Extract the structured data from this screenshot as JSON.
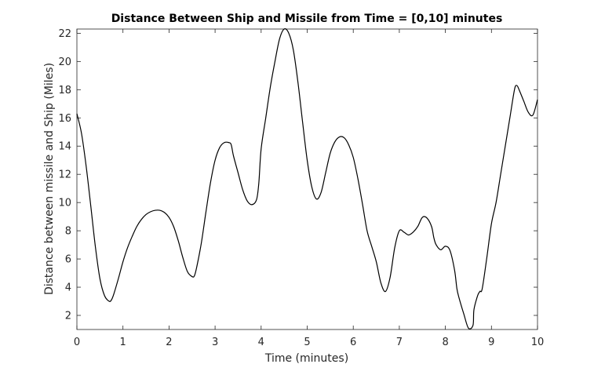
{
  "chart_data": {
    "type": "line",
    "title": "Distance Between Ship and Missile from Time = [0,10] minutes",
    "xlabel": "Time (minutes)",
    "ylabel": "Distance between missile and Ship (Miles)",
    "xlim": [
      0,
      10
    ],
    "ylim": [
      1,
      22.3
    ],
    "xticks": [
      "0",
      "1",
      "2",
      "3",
      "4",
      "5",
      "6",
      "7",
      "8",
      "9",
      "10"
    ],
    "yticks": [
      "2",
      "4",
      "6",
      "8",
      "10",
      "12",
      "14",
      "16",
      "18",
      "20",
      "22"
    ],
    "grid": false,
    "legend": "none",
    "line_color": "#000000",
    "series": [
      {
        "x": [
          0,
          0.1,
          0.2,
          0.3,
          0.4,
          0.5,
          0.6,
          0.7,
          0.75,
          0.8,
          0.9,
          1.0,
          1.1,
          1.2,
          1.3,
          1.4,
          1.5,
          1.6,
          1.7,
          1.8,
          1.9,
          2.0,
          2.1,
          2.2,
          2.3,
          2.4,
          2.5,
          2.55,
          2.6,
          2.7,
          2.8,
          2.9,
          3.0,
          3.1,
          3.2,
          3.3,
          3.35,
          3.4,
          3.5,
          3.6,
          3.7,
          3.8,
          3.9,
          3.95,
          4.0,
          4.1,
          4.2,
          4.3,
          4.4,
          4.5,
          4.6,
          4.7,
          4.8,
          4.9,
          5.0,
          5.1,
          5.2,
          5.3,
          5.4,
          5.5,
          5.6,
          5.7,
          5.8,
          5.9,
          6.0,
          6.1,
          6.2,
          6.3,
          6.4,
          6.5,
          6.6,
          6.7,
          6.8,
          6.9,
          7.0,
          7.1,
          7.2,
          7.3,
          7.4,
          7.5,
          7.6,
          7.7,
          7.75,
          7.8,
          7.9,
          8.0,
          8.1,
          8.2,
          8.25,
          8.3,
          8.4,
          8.5,
          8.6,
          8.62,
          8.7,
          8.75,
          8.8,
          8.9,
          9.0,
          9.1,
          9.2,
          9.3,
          9.4,
          9.5,
          9.55,
          9.6,
          9.7,
          9.8,
          9.9,
          10.0
        ],
        "values": [
          16.3,
          14.9,
          12.6,
          9.8,
          6.9,
          4.6,
          3.4,
          3.0,
          3.1,
          3.5,
          4.6,
          5.8,
          6.8,
          7.6,
          8.3,
          8.8,
          9.15,
          9.35,
          9.45,
          9.45,
          9.3,
          8.95,
          8.3,
          7.3,
          6.1,
          5.1,
          4.75,
          4.8,
          5.4,
          7.1,
          9.3,
          11.4,
          13.0,
          13.9,
          14.25,
          14.25,
          14.1,
          13.3,
          12.1,
          10.9,
          10.1,
          9.85,
          10.2,
          11.4,
          13.8,
          16.0,
          18.2,
          20.0,
          21.6,
          22.3,
          22.0,
          20.8,
          18.5,
          15.7,
          13.0,
          11.1,
          10.25,
          10.7,
          12.1,
          13.5,
          14.3,
          14.65,
          14.6,
          14.1,
          13.2,
          11.7,
          9.9,
          8.0,
          6.9,
          5.8,
          4.3,
          3.7,
          4.7,
          6.8,
          8.0,
          7.9,
          7.7,
          7.9,
          8.3,
          8.95,
          8.9,
          8.3,
          7.5,
          7.0,
          6.65,
          6.9,
          6.6,
          5.2,
          3.9,
          3.2,
          2.1,
          1.1,
          1.3,
          2.4,
          3.4,
          3.7,
          3.9,
          6.1,
          8.5,
          10.0,
          12.0,
          14.0,
          16.0,
          18.0,
          18.3,
          18.0,
          17.2,
          16.4,
          16.2,
          17.3
        ]
      }
    ]
  }
}
